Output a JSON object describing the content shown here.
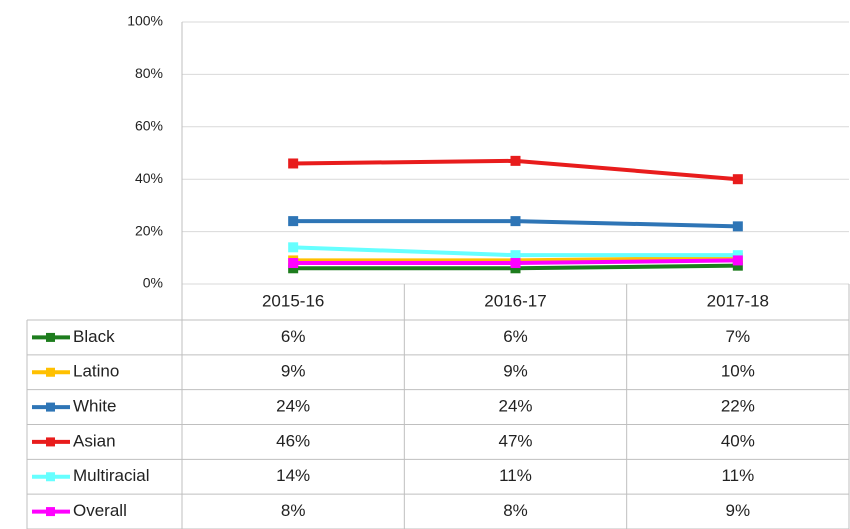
{
  "chart_data": {
    "type": "line",
    "categories": [
      "2015-16",
      "2016-17",
      "2017-18"
    ],
    "series": [
      {
        "name": "Black",
        "color": "#1e7d1e",
        "values": [
          6,
          6,
          7
        ],
        "value_labels": [
          "6%",
          "6%",
          "7%"
        ]
      },
      {
        "name": "Latino",
        "color": "#ffc000",
        "values": [
          9,
          9,
          10
        ],
        "value_labels": [
          "9%",
          "9%",
          "10%"
        ]
      },
      {
        "name": "White",
        "color": "#2e75b6",
        "values": [
          24,
          24,
          22
        ],
        "value_labels": [
          "24%",
          "24%",
          "22%"
        ]
      },
      {
        "name": "Asian",
        "color": "#e81c1c",
        "values": [
          46,
          47,
          40
        ],
        "value_labels": [
          "46%",
          "47%",
          "40%"
        ]
      },
      {
        "name": "Multiracial",
        "color": "#66ffff",
        "values": [
          14,
          11,
          11
        ],
        "value_labels": [
          "14%",
          "11%",
          "11%"
        ]
      },
      {
        "name": "Overall",
        "color": "#ff00ff",
        "values": [
          8,
          8,
          9
        ],
        "value_labels": [
          "8%",
          "8%",
          "9%"
        ]
      }
    ],
    "ylim": [
      0,
      100
    ],
    "yticks": [
      {
        "value": 0,
        "label": "0%"
      },
      {
        "value": 20,
        "label": "20%"
      },
      {
        "value": 40,
        "label": "40%"
      },
      {
        "value": 60,
        "label": "60%"
      },
      {
        "value": 80,
        "label": "80%"
      },
      {
        "value": 100,
        "label": "100%"
      }
    ],
    "grid": true
  }
}
